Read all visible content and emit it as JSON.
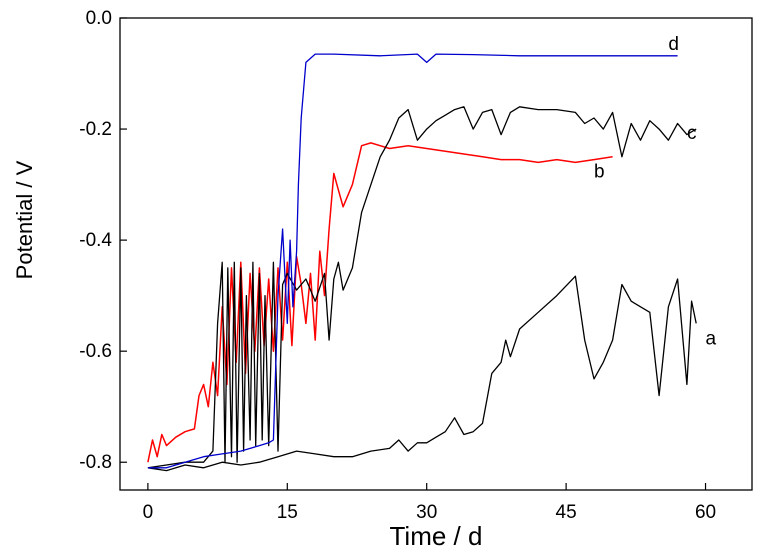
{
  "chart_data": {
    "type": "line",
    "title": "",
    "xlabel": "Time / d",
    "ylabel": "Potential / V",
    "xlim": [
      -3,
      65
    ],
    "ylim": [
      -0.85,
      0.0
    ],
    "xticks": [
      0,
      15,
      30,
      45,
      60
    ],
    "xtick_labels": [
      "0",
      "15",
      "30",
      "45",
      "60"
    ],
    "yticks": [
      0.0,
      -0.2,
      -0.4,
      -0.6,
      -0.8
    ],
    "ytick_labels": [
      "0.0",
      "-0.2",
      "-0.4",
      "-0.6",
      "-0.8"
    ],
    "grid": false,
    "legend": "none",
    "series": [
      {
        "name": "a",
        "color": "#000000",
        "label_at": [
          60.0,
          -0.575
        ],
        "x": [
          0,
          2,
          4,
          6,
          8,
          10,
          12,
          14,
          16,
          18,
          20,
          22,
          24,
          26,
          27,
          28,
          29,
          30,
          31,
          32,
          33,
          34,
          35,
          36,
          37,
          38,
          38.5,
          39,
          40,
          42,
          44,
          46,
          47,
          48,
          49,
          50,
          51,
          52,
          53,
          54,
          55,
          56,
          57,
          58,
          58.5,
          59
        ],
        "y": [
          -0.81,
          -0.815,
          -0.805,
          -0.81,
          -0.8,
          -0.805,
          -0.8,
          -0.79,
          -0.78,
          -0.785,
          -0.79,
          -0.79,
          -0.78,
          -0.775,
          -0.76,
          -0.78,
          -0.765,
          -0.765,
          -0.755,
          -0.745,
          -0.72,
          -0.75,
          -0.745,
          -0.73,
          -0.64,
          -0.62,
          -0.58,
          -0.61,
          -0.56,
          -0.53,
          -0.5,
          -0.465,
          -0.58,
          -0.65,
          -0.62,
          -0.58,
          -0.48,
          -0.51,
          -0.52,
          -0.53,
          -0.68,
          -0.52,
          -0.47,
          -0.66,
          -0.51,
          -0.55
        ]
      },
      {
        "name": "b",
        "color": "#ff0000",
        "label_at": [
          48.0,
          -0.275
        ],
        "x": [
          0,
          0.5,
          1,
          1.5,
          2,
          3,
          4,
          5,
          5.5,
          6,
          6.5,
          7,
          7.5,
          8,
          8.5,
          9,
          9.5,
          10,
          10.5,
          11,
          11.5,
          12,
          12.5,
          13,
          13.5,
          14,
          14.5,
          15,
          15.5,
          16,
          16.5,
          17,
          17.5,
          18,
          18.5,
          19,
          19.5,
          20,
          21,
          22,
          23,
          24,
          26,
          28,
          30,
          32,
          34,
          36,
          38,
          40,
          42,
          44,
          46,
          48,
          50
        ],
        "y": [
          -0.8,
          -0.76,
          -0.79,
          -0.75,
          -0.77,
          -0.755,
          -0.745,
          -0.74,
          -0.68,
          -0.66,
          -0.7,
          -0.62,
          -0.68,
          -0.52,
          -0.66,
          -0.45,
          -0.62,
          -0.44,
          -0.64,
          -0.46,
          -0.6,
          -0.45,
          -0.59,
          -0.47,
          -0.6,
          -0.45,
          -0.58,
          -0.44,
          -0.59,
          -0.43,
          -0.48,
          -0.55,
          -0.46,
          -0.58,
          -0.42,
          -0.5,
          -0.38,
          -0.28,
          -0.34,
          -0.3,
          -0.23,
          -0.225,
          -0.235,
          -0.23,
          -0.235,
          -0.24,
          -0.245,
          -0.25,
          -0.255,
          -0.255,
          -0.26,
          -0.255,
          -0.26,
          -0.255,
          -0.25
        ]
      },
      {
        "name": "c",
        "color": "#000000",
        "label_at": [
          58.0,
          -0.205
        ],
        "x": [
          0,
          2,
          4,
          6,
          7,
          7.5,
          8,
          8.3,
          8.6,
          9,
          9.3,
          9.6,
          10,
          10.3,
          10.6,
          11,
          11.3,
          11.6,
          12,
          12.3,
          12.6,
          13,
          13.5,
          14,
          14.5,
          15,
          16,
          17,
          18,
          19,
          19.5,
          20,
          20.5,
          21,
          22,
          23,
          24,
          25,
          26,
          27,
          28,
          29,
          30,
          31,
          32,
          33,
          34,
          35,
          36,
          37,
          38,
          39,
          40,
          42,
          44,
          46,
          47,
          48,
          49,
          50,
          51,
          52,
          53,
          54,
          55,
          56,
          57,
          58,
          59
        ],
        "y": [
          -0.81,
          -0.805,
          -0.8,
          -0.8,
          -0.78,
          -0.55,
          -0.44,
          -0.8,
          -0.45,
          -0.79,
          -0.44,
          -0.8,
          -0.45,
          -0.78,
          -0.5,
          -0.76,
          -0.44,
          -0.77,
          -0.46,
          -0.76,
          -0.5,
          -0.77,
          -0.44,
          -0.78,
          -0.48,
          -0.46,
          -0.49,
          -0.47,
          -0.51,
          -0.46,
          -0.58,
          -0.47,
          -0.44,
          -0.49,
          -0.45,
          -0.35,
          -0.3,
          -0.25,
          -0.22,
          -0.18,
          -0.165,
          -0.22,
          -0.2,
          -0.185,
          -0.175,
          -0.165,
          -0.16,
          -0.2,
          -0.17,
          -0.165,
          -0.21,
          -0.17,
          -0.16,
          -0.165,
          -0.165,
          -0.17,
          -0.19,
          -0.18,
          -0.2,
          -0.17,
          -0.25,
          -0.19,
          -0.22,
          -0.185,
          -0.2,
          -0.22,
          -0.19,
          -0.21,
          -0.2
        ]
      },
      {
        "name": "d",
        "color": "#0000cc",
        "label_at": [
          56.0,
          -0.045
        ],
        "x": [
          0,
          2,
          4,
          6,
          8,
          10,
          12,
          13,
          13.5,
          14,
          14.5,
          15,
          15.3,
          15.6,
          16,
          16.2,
          16.5,
          17,
          18,
          20,
          25,
          29,
          30,
          31,
          35,
          40,
          45,
          50,
          55,
          57
        ],
        "y": [
          -0.81,
          -0.81,
          -0.8,
          -0.79,
          -0.785,
          -0.78,
          -0.77,
          -0.765,
          -0.76,
          -0.5,
          -0.38,
          -0.55,
          -0.4,
          -0.52,
          -0.42,
          -0.3,
          -0.18,
          -0.08,
          -0.065,
          -0.065,
          -0.068,
          -0.065,
          -0.08,
          -0.065,
          -0.066,
          -0.068,
          -0.068,
          -0.068,
          -0.068,
          -0.068
        ]
      }
    ]
  }
}
